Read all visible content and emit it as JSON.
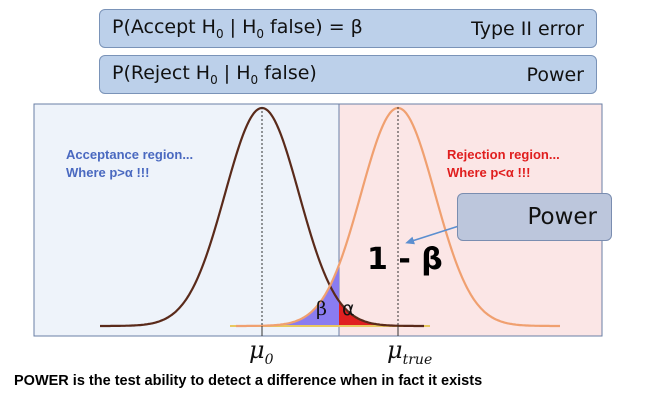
{
  "top_boxes": {
    "type2": {
      "prefix": "P(Accept H",
      "sub1": "0",
      "mid": " | H",
      "sub2": "0",
      "suffix": " false) = β",
      "right": "Type II error"
    },
    "power": {
      "prefix": "P(Reject H",
      "sub1": "0",
      "mid": " | H",
      "sub2": "0",
      "suffix": " false)",
      "right": "Power"
    }
  },
  "regions": {
    "acceptance": {
      "line1": "Acceptance region...",
      "line2": "Where p>α !!!",
      "color": "#4a69c0",
      "fill": "#eef3fa"
    },
    "rejection": {
      "line1": "Rejection region...",
      "line2": "Where p<α !!!",
      "color": "#e01e1e",
      "fill": "#fbe6e6"
    }
  },
  "labels": {
    "power_callout": "Power",
    "one_minus_beta": "1 - β",
    "beta": "β",
    "alpha": "α",
    "mu0_base": "μ",
    "mu0_sub": "0",
    "mutrue_base": "μ",
    "mutrue_sub": "true"
  },
  "caption": "POWER is the test ability to detect a difference when in fact it exists",
  "colors": {
    "null_curve": "#5a2a1a",
    "alt_curve": "#f0a070",
    "beta_area": "#8a7cf0",
    "alpha_area": "#e02020",
    "arrow": "#5b8fd0",
    "baseline": "#e8c860"
  }
}
